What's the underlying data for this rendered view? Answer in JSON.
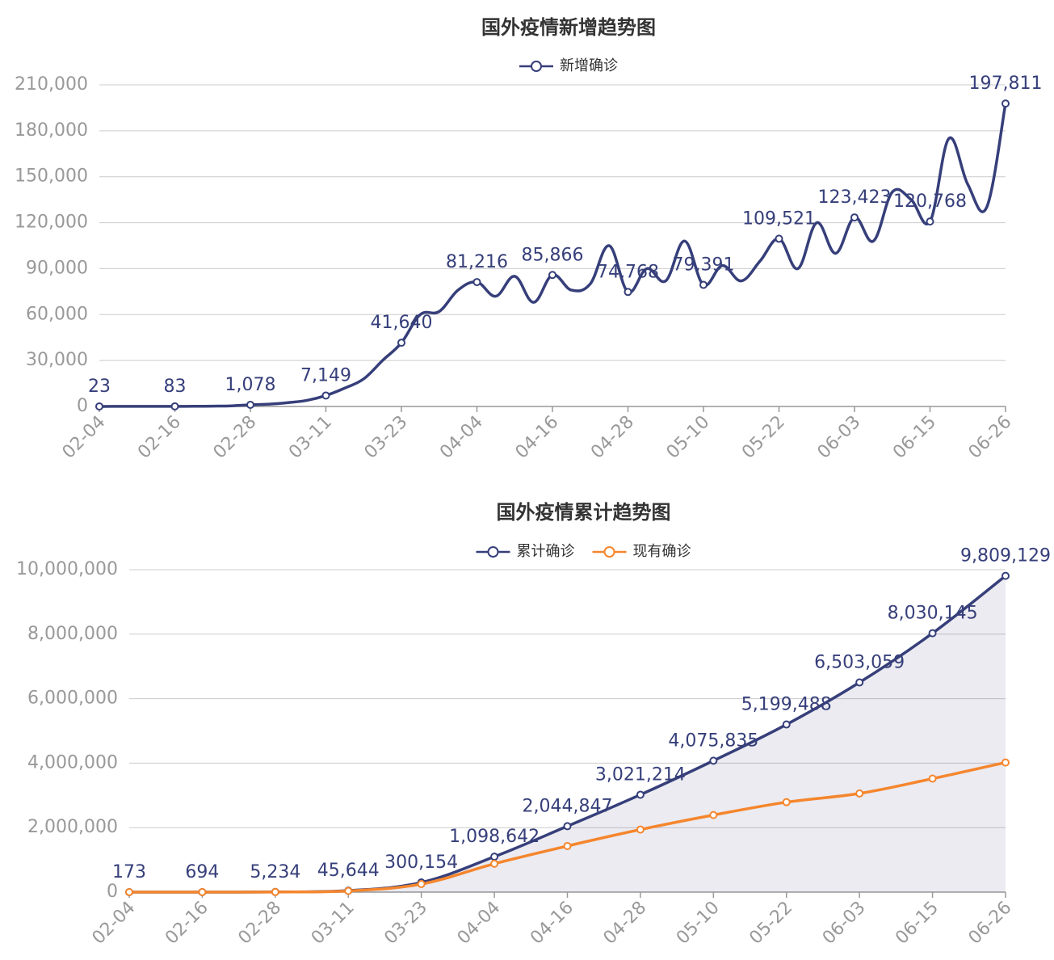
{
  "chart_data": [
    {
      "type": "line",
      "title": "国外疫情新增趋势图",
      "categories": [
        "02-04",
        null,
        null,
        null,
        "02-16",
        null,
        null,
        null,
        "02-28",
        null,
        null,
        null,
        "03-11",
        null,
        null,
        null,
        "03-23",
        null,
        null,
        null,
        "04-04",
        null,
        null,
        null,
        "04-16",
        null,
        null,
        null,
        "04-28",
        null,
        null,
        null,
        "05-10",
        null,
        null,
        null,
        "05-22",
        null,
        null,
        null,
        "06-03",
        null,
        null,
        null,
        "06-15",
        null,
        null,
        null,
        "06-26"
      ],
      "series": [
        {
          "name": "新增确诊",
          "color": "#363f7a",
          "values": [
            23,
            50,
            60,
            70,
            83,
            100,
            200,
            400,
            1078,
            1500,
            2500,
            4000,
            7149,
            12000,
            18000,
            30000,
            41640,
            60000,
            62000,
            76000,
            81216,
            72000,
            85000,
            68000,
            85866,
            76000,
            80000,
            105000,
            74768,
            90000,
            82000,
            108000,
            79391,
            92000,
            82000,
            95000,
            109521,
            90000,
            120000,
            100000,
            123423,
            108000,
            140000,
            135000,
            120768,
            175000,
            145000,
            130000,
            197811
          ],
          "value_labels": [
            "23",
            null,
            null,
            null,
            "83",
            null,
            null,
            null,
            "1,078",
            null,
            null,
            null,
            "7,149",
            null,
            null,
            null,
            "41,640",
            null,
            null,
            null,
            "81,216",
            null,
            null,
            null,
            "85,866",
            null,
            null,
            null,
            "74,768",
            null,
            null,
            null,
            "79,391",
            null,
            null,
            null,
            "109,521",
            null,
            null,
            null,
            "123,423",
            null,
            null,
            null,
            "120,768",
            null,
            null,
            null,
            "197,811"
          ]
        }
      ],
      "ylim": [
        0,
        210000
      ],
      "yticks": [
        0,
        {
          "value": 30000,
          "label": "30,000"
        },
        {
          "value": 60000,
          "label": "60,000"
        },
        {
          "value": 90000,
          "label": "90,000"
        },
        {
          "value": 120000,
          "label": "120,000"
        },
        {
          "value": 150000,
          "label": "150,000"
        },
        {
          "value": 180000,
          "label": "180,000"
        },
        {
          "value": 210000,
          "label": "210,000"
        }
      ],
      "grid": true
    },
    {
      "type": "line",
      "title": "国外疫情累计趋势图",
      "categories": [
        "02-04",
        "02-16",
        "02-28",
        "03-11",
        "03-23",
        "04-04",
        "04-16",
        "04-28",
        "05-10",
        "05-22",
        "06-03",
        "06-15",
        "06-26"
      ],
      "series": [
        {
          "name": "累计确诊",
          "color": "#363f7a",
          "area": true,
          "values": [
            173,
            694,
            5234,
            45644,
            300154,
            1098642,
            2044847,
            3021214,
            4075835,
            5199488,
            6503059,
            8030145,
            9809129
          ],
          "value_labels": [
            "173",
            "694",
            "5,234",
            "45,644",
            "300,154",
            "1,098,642",
            "2,044,847",
            "3,021,214",
            "4,075,835",
            "5,199,488",
            "6,503,059",
            "8,030,145",
            "9,809,129"
          ]
        },
        {
          "name": "现有确诊",
          "color": "#f5862d",
          "values": [
            150,
            500,
            3500,
            38000,
            250000,
            880000,
            1430000,
            1940000,
            2390000,
            2790000,
            3060000,
            3520000,
            4020000
          ]
        }
      ],
      "ylim": [
        0,
        10000000
      ],
      "yticks": [
        0,
        {
          "value": 2000000,
          "label": "2,000,000"
        },
        {
          "value": 4000000,
          "label": "4,000,000"
        },
        {
          "value": 6000000,
          "label": "6,000,000"
        },
        {
          "value": 8000000,
          "label": "8,000,000"
        },
        {
          "value": 10000000,
          "label": "10,000,000"
        }
      ],
      "grid": true
    }
  ]
}
